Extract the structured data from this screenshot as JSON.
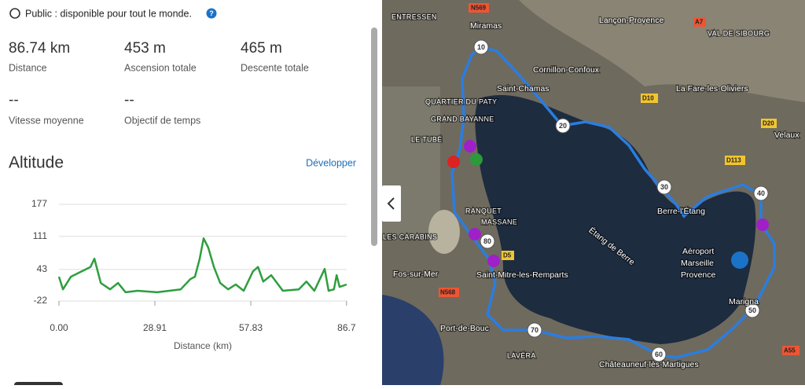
{
  "header": {
    "visibility": "Public : disponible pour tout le monde.",
    "help_icon": "?"
  },
  "stats": [
    {
      "value": "86.74 km",
      "label": "Distance"
    },
    {
      "value": "453 m",
      "label": "Ascension totale"
    },
    {
      "value": "465 m",
      "label": "Descente totale"
    },
    {
      "value": "--",
      "label": "Vitesse moyenne"
    },
    {
      "value": "--",
      "label": "Objectif de temps"
    }
  ],
  "section": {
    "title": "Altitude",
    "action": "Développer"
  },
  "chart_data": {
    "type": "line",
    "x_label": "Distance (km)",
    "x": [
      0,
      1.2,
      3.6,
      9.5,
      10.7,
      12.6,
      15.4,
      17.8,
      20.1,
      23.7,
      29.6,
      36.7,
      39.6,
      41.0,
      42.4,
      43.6,
      45.0,
      46.7,
      48.6,
      51.0,
      53.3,
      55.7,
      58.5,
      60.0,
      61.6,
      64.0,
      67.5,
      72.3,
      74.6,
      77.0,
      80.1,
      81.3,
      82.9,
      83.7,
      84.6,
      86.74
    ],
    "series": [
      {
        "color": "#2e9e3e",
        "values": [
          28,
          2,
          28,
          48,
          65,
          15,
          2,
          15,
          -4,
          -1,
          -4,
          2,
          23,
          28,
          64,
          107,
          88,
          48,
          15,
          2,
          12,
          -1,
          39,
          48,
          18,
          31,
          -1,
          2,
          18,
          -1,
          44,
          -1,
          2,
          31,
          7,
          12
        ]
      }
    ],
    "xlim": [
      0,
      86.74
    ],
    "ylim": [
      -22,
      177
    ],
    "yticks": [
      -22,
      43,
      111,
      177
    ],
    "xticks": [
      {
        "value": 0,
        "label": "0.00"
      },
      28.91,
      57.83,
      86.7
    ],
    "grid": true
  },
  "map": {
    "route_markers": [
      "10",
      "20",
      "30",
      "40",
      "50",
      "60",
      "70",
      "80"
    ],
    "labels": [
      "ENTRESSEN",
      "Miramas",
      "Lançon-Provence",
      "VAL DE SIBOURG",
      "Cornillon-Confoux",
      "Saint-Chamas",
      "La Fare-les-Oliviers",
      "Velaux",
      "QUARTIER DU PATY",
      "GRAND BAYANNE",
      "LE TUBÉ",
      "RANQUET",
      "MASSANE",
      "LES CARABINS",
      "Fos-sur-Mer",
      "Saint-Mitre-les-Remparts",
      "Étang de Berre",
      "Berre-l'Étang",
      "Aéroport",
      "Marseille",
      "Provence",
      "Port-de-Bouc",
      "LAVÉRA",
      "Châteauneuf-lès-Martigues",
      "Marigna"
    ],
    "roads": [
      "N569",
      "A7",
      "D113",
      "D20",
      "N568",
      "D5",
      "A55",
      "D10"
    ]
  }
}
